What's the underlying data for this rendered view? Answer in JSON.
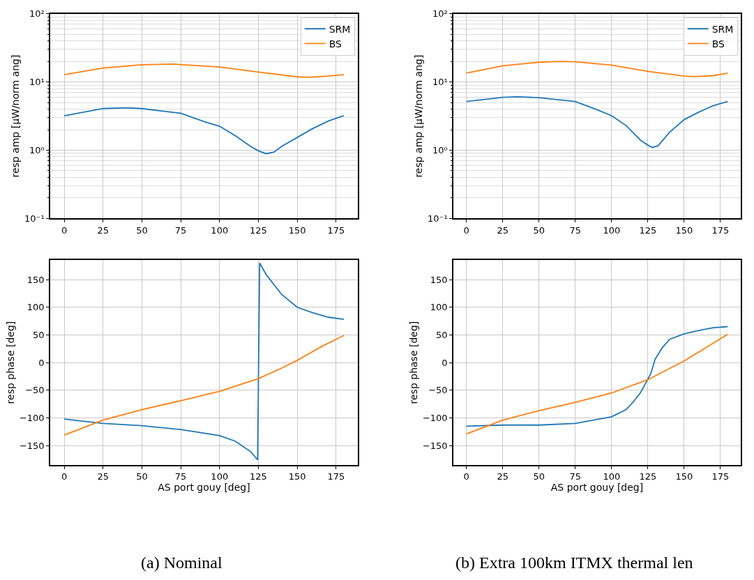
{
  "chart_data": [
    {
      "type": "line",
      "ylabel": "resp amp [μW/norm ang]",
      "log": "y",
      "grid": true,
      "legend": "top right",
      "xlim": [
        -9,
        189
      ],
      "xticks": [
        0,
        25,
        50,
        75,
        100,
        125,
        150,
        175
      ],
      "ylim": [
        0.1,
        100
      ],
      "yticks": [
        {
          "value": 0.1,
          "label": "10⁻¹"
        },
        {
          "value": 1,
          "label": "10⁰"
        },
        {
          "value": 10,
          "label": "10¹"
        },
        {
          "value": 100,
          "label": "10²"
        }
      ],
      "series": [
        {
          "name": "SRM",
          "color": "#1f77b4",
          "x": [
            0,
            25,
            40,
            50,
            75,
            90,
            100,
            110,
            120,
            125,
            130,
            135,
            140,
            150,
            160,
            170,
            180
          ],
          "values": [
            3.19,
            4.08,
            4.18,
            4.08,
            3.48,
            2.63,
            2.25,
            1.64,
            1.14,
            0.98,
            0.89,
            0.94,
            1.14,
            1.54,
            2.08,
            2.68,
            3.21
          ]
        },
        {
          "name": "BS",
          "color": "#ff7f0e",
          "x": [
            0,
            25,
            50,
            70,
            100,
            125,
            150,
            157,
            170,
            180
          ],
          "values": [
            12.8,
            16.0,
            17.9,
            18.3,
            16.6,
            14.0,
            11.9,
            11.7,
            12.2,
            12.8
          ]
        }
      ]
    },
    {
      "type": "line",
      "ylabel": "resp amp [μW/norm ang]",
      "log": "y",
      "grid": true,
      "legend": "top right",
      "xlim": [
        -9,
        189
      ],
      "xticks": [
        0,
        25,
        50,
        75,
        100,
        125,
        150,
        175
      ],
      "ylim": [
        0.1,
        100
      ],
      "yticks": [
        {
          "value": 0.1,
          "label": "10⁻¹"
        },
        {
          "value": 1,
          "label": "10⁰"
        },
        {
          "value": 10,
          "label": "10¹"
        },
        {
          "value": 100,
          "label": "10²"
        }
      ],
      "series": [
        {
          "name": "SRM",
          "color": "#1f77b4",
          "x": [
            0,
            25,
            35,
            50,
            75,
            90,
            100,
            110,
            120,
            125,
            128,
            132,
            140,
            150,
            160,
            170,
            180
          ],
          "values": [
            5.17,
            5.97,
            6.07,
            5.9,
            5.17,
            3.92,
            3.21,
            2.3,
            1.4,
            1.19,
            1.1,
            1.16,
            1.84,
            2.81,
            3.62,
            4.49,
            5.17
          ]
        },
        {
          "name": "BS",
          "color": "#ff7f0e",
          "x": [
            0,
            25,
            50,
            65,
            75,
            100,
            125,
            150,
            157,
            170,
            180
          ],
          "values": [
            13.5,
            17.3,
            19.5,
            20.0,
            19.8,
            17.7,
            14.3,
            12.2,
            12.0,
            12.4,
            13.5
          ]
        }
      ]
    },
    {
      "type": "line",
      "ylabel": "resp phase [deg]",
      "xlabel": "AS port gouy [deg]",
      "grid": true,
      "xlim": [
        -9,
        189
      ],
      "xticks": [
        0,
        25,
        50,
        75,
        100,
        125,
        150,
        175
      ],
      "ylim": [
        -185,
        185
      ],
      "yticks": [
        {
          "value": -150,
          "label": "−150"
        },
        {
          "value": -100,
          "label": "−100"
        },
        {
          "value": -50,
          "label": "−50"
        },
        0,
        50,
        100,
        150
      ],
      "annotations": [
        "(a) Nominal"
      ],
      "series": [
        {
          "color": "#1f77b4",
          "x": [
            0,
            25,
            50,
            75,
            100,
            110,
            120,
            124.5,
            125.8,
            130,
            140,
            150,
            160,
            170,
            180
          ],
          "values": [
            -102,
            -110,
            -114,
            -121,
            -132,
            -142,
            -161,
            -176,
            180,
            159,
            123,
            100,
            90,
            82,
            78
          ]
        },
        {
          "color": "#ff7f0e",
          "x": [
            0,
            25,
            50,
            75,
            100,
            125,
            140,
            150,
            165,
            180
          ],
          "values": [
            -131,
            -104,
            -85,
            -69,
            -52,
            -29,
            -10,
            4,
            28,
            49
          ]
        }
      ]
    },
    {
      "type": "line",
      "ylabel": "resp phase [deg]",
      "xlabel": "AS port gouy [deg]",
      "grid": true,
      "xlim": [
        -9,
        189
      ],
      "xticks": [
        0,
        25,
        50,
        75,
        100,
        125,
        150,
        175
      ],
      "ylim": [
        -185,
        185
      ],
      "yticks": [
        {
          "value": -150,
          "label": "−150"
        },
        {
          "value": -100,
          "label": "−100"
        },
        {
          "value": -50,
          "label": "−50"
        },
        0,
        50,
        100,
        150
      ],
      "annotations": [
        "(b) Extra 100km ITMX thermal len"
      ],
      "series": [
        {
          "color": "#1f77b4",
          "x": [
            0,
            25,
            50,
            75,
            100,
            110,
            115,
            120,
            125,
            127,
            130,
            135,
            140,
            150,
            160,
            170,
            180
          ],
          "values": [
            -115,
            -113,
            -113,
            -110,
            -98,
            -85,
            -71,
            -54,
            -30,
            -20,
            6,
            27,
            42,
            52,
            58,
            63,
            65
          ]
        },
        {
          "color": "#ff7f0e",
          "x": [
            0,
            15,
            25,
            50,
            75,
            100,
            125,
            150,
            165,
            180
          ],
          "values": [
            -129,
            -114,
            -104,
            -87,
            -72,
            -55,
            -31,
            3,
            27,
            51
          ]
        }
      ]
    }
  ]
}
